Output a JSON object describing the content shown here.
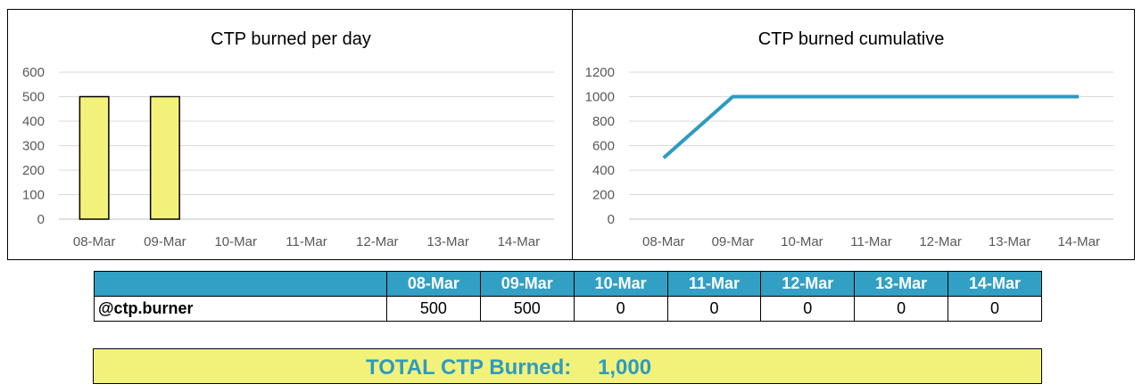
{
  "colors": {
    "bar_fill": "#f2f27a",
    "line": "#2e9bc0",
    "table_header": "#31a0c4",
    "total_bg": "#f2f27a",
    "total_text": "#2e9bc0"
  },
  "chart_data": [
    {
      "type": "bar",
      "title": "CTP burned per day",
      "categories": [
        "08-Mar",
        "09-Mar",
        "10-Mar",
        "11-Mar",
        "12-Mar",
        "13-Mar",
        "14-Mar"
      ],
      "values": [
        500,
        500,
        0,
        0,
        0,
        0,
        0
      ],
      "ylim": [
        0,
        600
      ],
      "yticks": [
        "0",
        "100",
        "200",
        "300",
        "400",
        "500",
        "600"
      ],
      "grid": true
    },
    {
      "type": "line",
      "title": "CTP burned cumulative",
      "categories": [
        "08-Mar",
        "09-Mar",
        "10-Mar",
        "11-Mar",
        "12-Mar",
        "13-Mar",
        "14-Mar"
      ],
      "values": [
        500,
        1000,
        1000,
        1000,
        1000,
        1000,
        1000
      ],
      "ylim": [
        0,
        1200
      ],
      "yticks": [
        "0",
        "200",
        "400",
        "600",
        "800",
        "1000",
        "1200"
      ],
      "grid": true
    }
  ],
  "table": {
    "headers": [
      "08-Mar",
      "09-Mar",
      "10-Mar",
      "11-Mar",
      "12-Mar",
      "13-Mar",
      "14-Mar"
    ],
    "row_name": "@ctp.burner",
    "row_values": [
      "500",
      "500",
      "0",
      "0",
      "0",
      "0",
      "0"
    ]
  },
  "total": {
    "label": "TOTAL CTP Burned:",
    "value": "1,000"
  }
}
